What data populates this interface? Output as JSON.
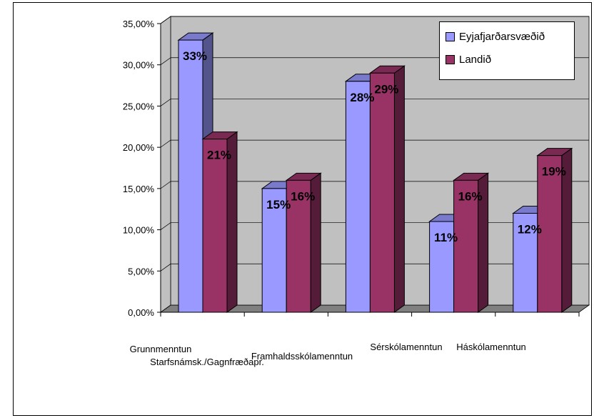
{
  "chart_data": {
    "type": "bar",
    "categories": [
      "Grunnmenntun",
      "Starfsnámsk./Gagnfræðapr.",
      "Framhaldsskólamenntun",
      "Sérskólamenntun",
      "Háskólamenntun"
    ],
    "series": [
      {
        "name": "Eyjafjarðarsvæðið",
        "color": "#9999ff",
        "values": [
          0.33,
          0.15,
          0.28,
          0.11,
          0.12
        ],
        "labels": [
          "33%",
          "15%",
          "28%",
          "11%",
          "12%"
        ]
      },
      {
        "name": "Landið",
        "color": "#993366",
        "values": [
          0.21,
          0.16,
          0.29,
          0.16,
          0.19
        ],
        "labels": [
          "21%",
          "16%",
          "29%",
          "16%",
          "19%"
        ]
      }
    ],
    "y_ticks": [
      "0,00%",
      "5,00%",
      "10,00%",
      "15,00%",
      "20,00%",
      "25,00%",
      "30,00%",
      "35,00%"
    ],
    "ylim": [
      0,
      0.35
    ],
    "grid": true,
    "legend_position": "top-right",
    "wall_color": "#c0c0c0",
    "floor_color": "#808080",
    "three_d": true
  }
}
